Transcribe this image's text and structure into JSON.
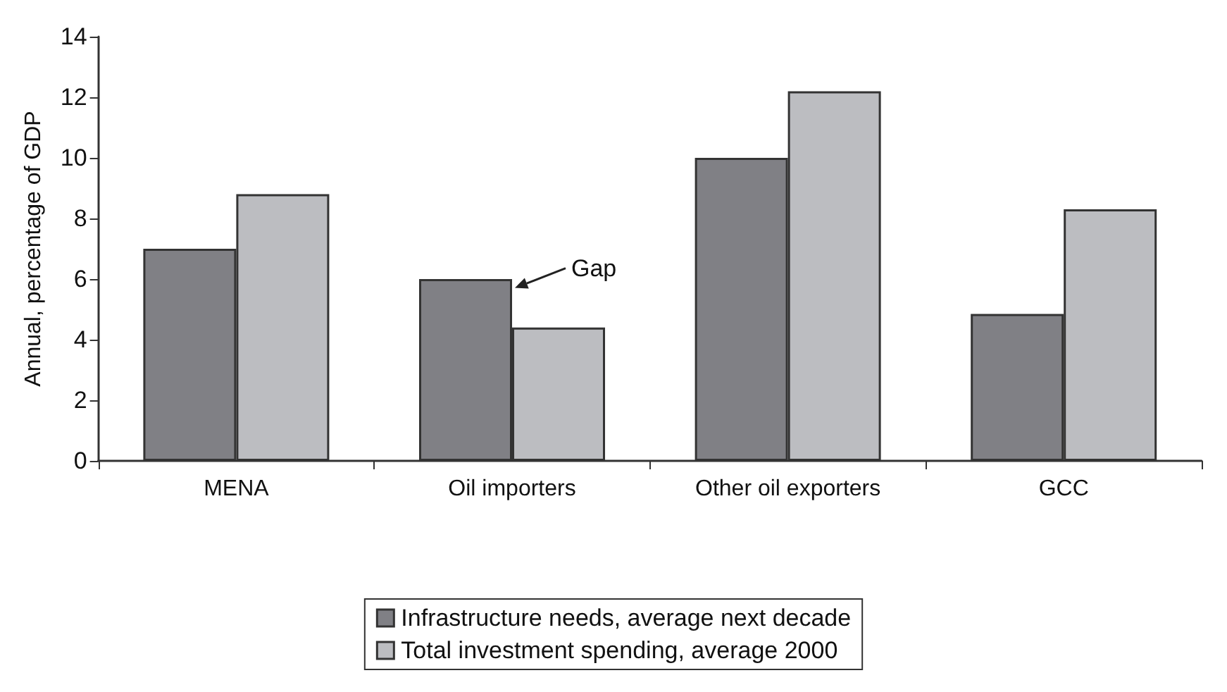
{
  "chart_data": {
    "type": "bar",
    "ylabel": "Annual, percentage of GDP",
    "categories": [
      "MENA",
      "Oil importers",
      "Other oil exporters",
      "GCC"
    ],
    "series": [
      {
        "name": "Infrastructure needs, average next decade",
        "color": "#808085",
        "values": [
          7.0,
          6.0,
          10.0,
          4.85
        ]
      },
      {
        "name": "Total investment spending, average 2000",
        "color": "#bcbdc1",
        "values": [
          8.8,
          4.4,
          12.2,
          8.3
        ]
      }
    ],
    "ylim": [
      0,
      14
    ],
    "yticks": [
      0,
      2,
      4,
      6,
      8,
      10,
      12,
      14
    ],
    "grid": false,
    "legend": "bottom",
    "annotations": [
      {
        "text": "Gap",
        "x": "Oil importers",
        "y": 5.8
      }
    ]
  }
}
